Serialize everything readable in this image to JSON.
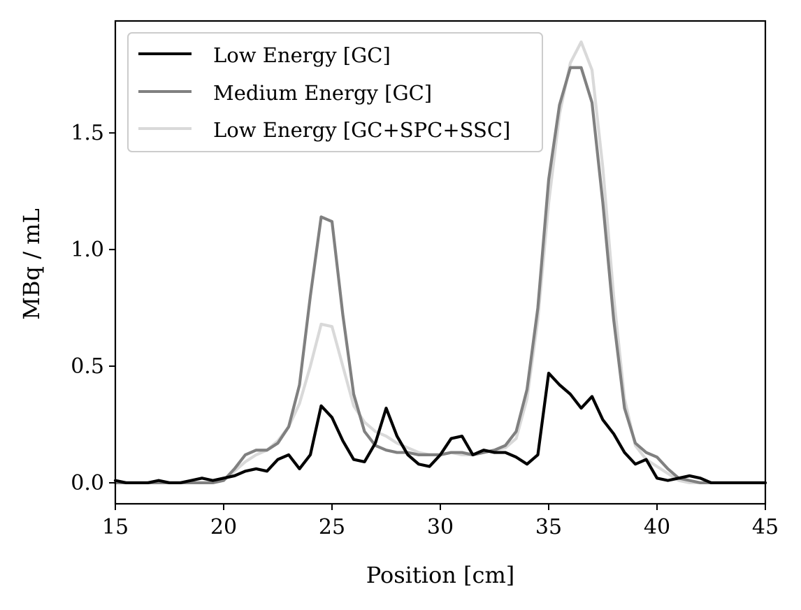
{
  "chart_data": {
    "type": "line",
    "title": "",
    "xlabel": "Position [cm]",
    "ylabel": "MBq / mL",
    "xlim": [
      15,
      45
    ],
    "ylim": [
      -0.09,
      1.98
    ],
    "xticks": [
      15,
      20,
      25,
      30,
      35,
      40,
      45
    ],
    "xtick_labels": [
      "15",
      "20",
      "25",
      "30",
      "35",
      "40",
      "45"
    ],
    "yticks": [
      0.0,
      0.5,
      1.0,
      1.5
    ],
    "ytick_labels": [
      "0.0",
      "0.5",
      "1.0",
      "1.5"
    ],
    "grid": false,
    "legend_position": "top-left",
    "x": [
      15.0,
      15.5,
      16.0,
      16.5,
      17.0,
      17.5,
      18.0,
      18.5,
      19.0,
      19.5,
      20.0,
      20.5,
      21.0,
      21.5,
      22.0,
      22.5,
      23.0,
      23.5,
      24.0,
      24.5,
      25.0,
      25.5,
      26.0,
      26.5,
      27.0,
      27.5,
      28.0,
      28.5,
      29.0,
      29.5,
      30.0,
      30.5,
      31.0,
      31.5,
      32.0,
      32.5,
      33.0,
      33.5,
      34.0,
      34.5,
      35.0,
      35.5,
      36.0,
      36.5,
      37.0,
      37.5,
      38.0,
      38.5,
      39.0,
      39.5,
      40.0,
      40.5,
      41.0,
      41.5,
      42.0,
      42.5,
      43.0,
      43.5,
      44.0,
      44.5,
      45.0
    ],
    "series": [
      {
        "name": "Low Energy [GC]",
        "color": "#000000",
        "values": [
          0.01,
          0.0,
          0.0,
          0.0,
          0.01,
          0.0,
          0.0,
          0.01,
          0.02,
          0.01,
          0.02,
          0.03,
          0.05,
          0.06,
          0.05,
          0.1,
          0.12,
          0.06,
          0.12,
          0.33,
          0.28,
          0.18,
          0.1,
          0.09,
          0.17,
          0.32,
          0.2,
          0.12,
          0.08,
          0.07,
          0.12,
          0.19,
          0.2,
          0.12,
          0.14,
          0.13,
          0.13,
          0.11,
          0.08,
          0.12,
          0.47,
          0.42,
          0.38,
          0.32,
          0.37,
          0.27,
          0.21,
          0.13,
          0.08,
          0.1,
          0.02,
          0.01,
          0.02,
          0.03,
          0.02,
          0.0,
          0.0,
          0.0,
          0.0,
          0.0,
          0.0
        ]
      },
      {
        "name": "Medium Energy [GC]",
        "color": "#808080",
        "values": [
          0.0,
          0.0,
          0.0,
          0.0,
          0.0,
          0.0,
          0.0,
          0.0,
          0.0,
          0.0,
          0.01,
          0.06,
          0.12,
          0.14,
          0.14,
          0.17,
          0.24,
          0.42,
          0.8,
          1.14,
          1.12,
          0.72,
          0.38,
          0.22,
          0.16,
          0.14,
          0.13,
          0.13,
          0.12,
          0.12,
          0.12,
          0.13,
          0.13,
          0.12,
          0.13,
          0.14,
          0.16,
          0.22,
          0.4,
          0.75,
          1.3,
          1.62,
          1.78,
          1.78,
          1.63,
          1.2,
          0.7,
          0.32,
          0.17,
          0.13,
          0.11,
          0.06,
          0.02,
          0.01,
          0.0,
          0.0,
          0.0,
          0.0,
          0.0,
          0.0,
          0.0
        ]
      },
      {
        "name": "Low Energy [GC+SPC+SSC]",
        "color": "#d9d9d9",
        "values": [
          0.0,
          0.0,
          0.0,
          0.0,
          0.0,
          0.0,
          0.0,
          0.0,
          0.0,
          0.0,
          0.01,
          0.05,
          0.09,
          0.12,
          0.14,
          0.18,
          0.24,
          0.34,
          0.5,
          0.68,
          0.67,
          0.5,
          0.33,
          0.26,
          0.22,
          0.2,
          0.17,
          0.15,
          0.13,
          0.12,
          0.12,
          0.13,
          0.12,
          0.12,
          0.13,
          0.14,
          0.15,
          0.19,
          0.36,
          0.7,
          1.2,
          1.58,
          1.8,
          1.89,
          1.77,
          1.35,
          0.8,
          0.36,
          0.16,
          0.1,
          0.07,
          0.04,
          0.01,
          0.0,
          0.0,
          0.0,
          0.0,
          0.0,
          0.0,
          0.0,
          0.0
        ]
      }
    ]
  }
}
